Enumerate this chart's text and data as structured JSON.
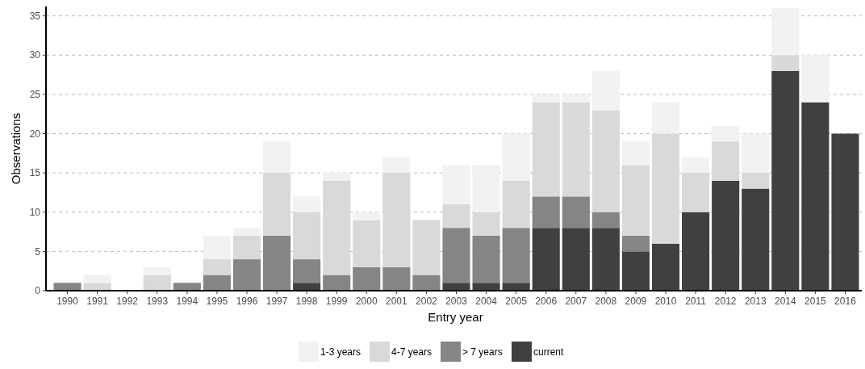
{
  "chart_data": {
    "type": "bar",
    "stacked": true,
    "xlabel": "Entry year",
    "ylabel": "Observations",
    "categories": [
      "1990",
      "1991",
      "1992",
      "1993",
      "1994",
      "1995",
      "1996",
      "1997",
      "1998",
      "1999",
      "2000",
      "2001",
      "2002",
      "2003",
      "2004",
      "2005",
      "2006",
      "2007",
      "2008",
      "2009",
      "2010",
      "2011",
      "2012",
      "2013",
      "2014",
      "2015",
      "2016"
    ],
    "series": [
      {
        "name": "current",
        "color": "#404040",
        "values": [
          0,
          0,
          0,
          0,
          0,
          0,
          0,
          0,
          1,
          0,
          0,
          0,
          0,
          1,
          1,
          1,
          8,
          8,
          8,
          5,
          6,
          10,
          14,
          13,
          28,
          24,
          20
        ]
      },
      {
        "name": "> 7 years",
        "color": "#858585",
        "values": [
          1,
          0,
          0,
          0,
          1,
          2,
          4,
          7,
          3,
          2,
          3,
          3,
          2,
          7,
          6,
          7,
          4,
          4,
          2,
          2,
          0,
          0,
          0,
          0,
          0,
          0,
          0
        ]
      },
      {
        "name": "4-7 years",
        "color": "#d9d9d9",
        "values": [
          0,
          1,
          0,
          2,
          0,
          2,
          3,
          8,
          6,
          12,
          6,
          12,
          7,
          3,
          3,
          6,
          12,
          12,
          13,
          9,
          14,
          5,
          5,
          2,
          2,
          0,
          0
        ]
      },
      {
        "name": "1-3 years",
        "color": "#f2f2f2",
        "values": [
          0,
          1,
          0,
          1,
          0,
          3,
          1,
          4,
          2,
          1,
          1,
          2,
          0,
          5,
          6,
          6,
          1,
          1,
          5,
          3,
          4,
          2,
          2,
          5,
          6,
          6,
          0
        ]
      }
    ],
    "ylim": [
      0,
      36.2
    ],
    "yticks": [
      0,
      5,
      10,
      15,
      20,
      25,
      30,
      35
    ],
    "grid": "y",
    "legend": "bottom"
  }
}
